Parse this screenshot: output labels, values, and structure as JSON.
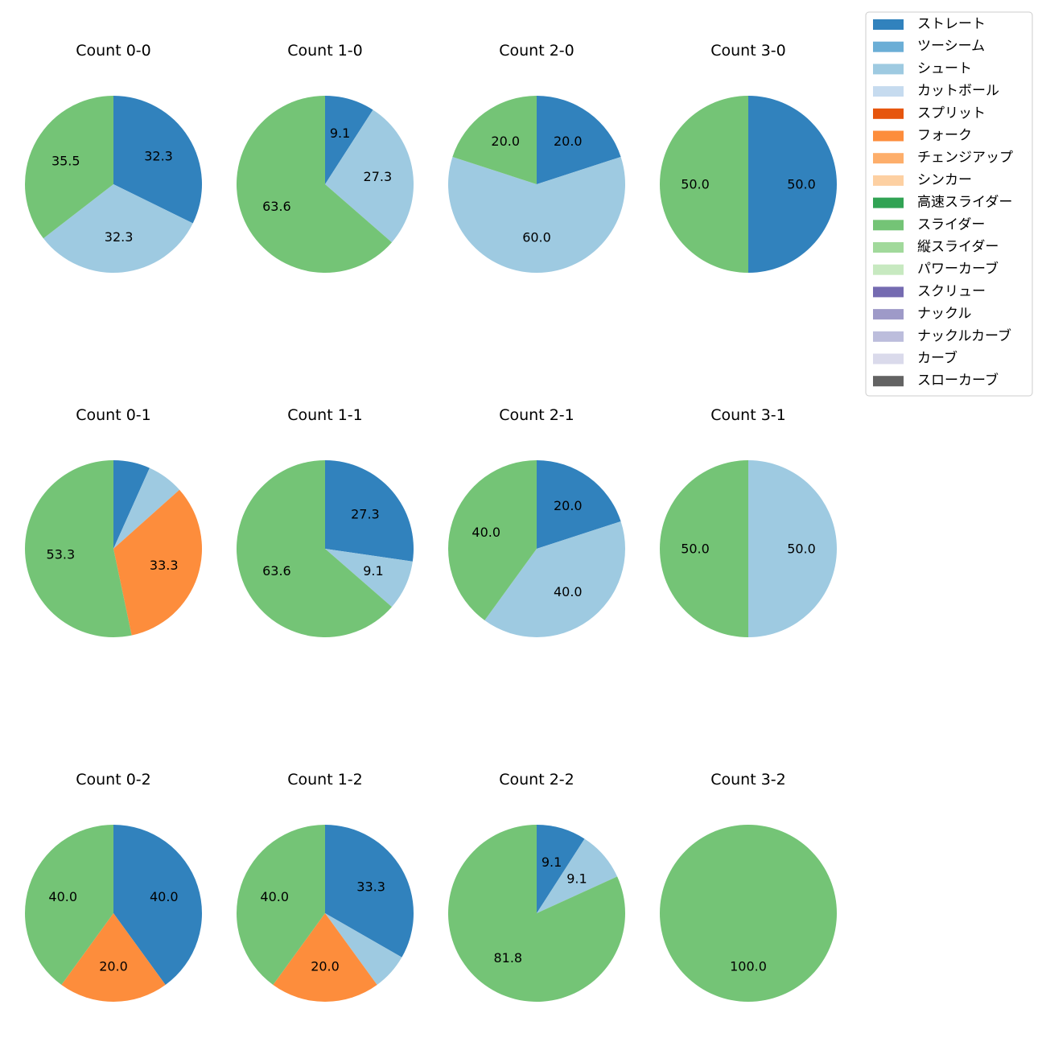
{
  "legend": {
    "entries": [
      {
        "name": "ストレート",
        "color": "#3182bd"
      },
      {
        "name": "ツーシーム",
        "color": "#6baed6"
      },
      {
        "name": "シュート",
        "color": "#9ecae1"
      },
      {
        "name": "カットボール",
        "color": "#c6dbef"
      },
      {
        "name": "スプリット",
        "color": "#e6550d"
      },
      {
        "name": "フォーク",
        "color": "#fd8d3c"
      },
      {
        "name": "チェンジアップ",
        "color": "#fdae6b"
      },
      {
        "name": "シンカー",
        "color": "#fdd0a2"
      },
      {
        "name": "高速スライダー",
        "color": "#31a354"
      },
      {
        "name": "スライダー",
        "color": "#74c476"
      },
      {
        "name": "縦スライダー",
        "color": "#a1d99b"
      },
      {
        "name": "パワーカーブ",
        "color": "#c7e9c0"
      },
      {
        "name": "スクリュー",
        "color": "#756bb1"
      },
      {
        "name": "ナックル",
        "color": "#9e9ac8"
      },
      {
        "name": "ナックルカーブ",
        "color": "#bcbddc"
      },
      {
        "name": "カーブ",
        "color": "#dadaeb"
      },
      {
        "name": "スローカーブ",
        "color": "#636363"
      }
    ]
  },
  "chart_data": [
    {
      "type": "pie",
      "title": "Count 0-0",
      "slices": [
        {
          "pitch": "ストレート",
          "value": 32.3,
          "label": "32.3"
        },
        {
          "pitch": "シュート",
          "value": 32.3,
          "label": "32.3"
        },
        {
          "pitch": "スライダー",
          "value": 35.5,
          "label": "35.5"
        }
      ]
    },
    {
      "type": "pie",
      "title": "Count 1-0",
      "slices": [
        {
          "pitch": "ストレート",
          "value": 9.1,
          "label": "9.1"
        },
        {
          "pitch": "シュート",
          "value": 27.3,
          "label": "27.3"
        },
        {
          "pitch": "スライダー",
          "value": 63.6,
          "label": "63.6"
        }
      ]
    },
    {
      "type": "pie",
      "title": "Count 2-0",
      "slices": [
        {
          "pitch": "ストレート",
          "value": 20.0,
          "label": "20.0"
        },
        {
          "pitch": "シュート",
          "value": 60.0,
          "label": "60.0"
        },
        {
          "pitch": "スライダー",
          "value": 20.0,
          "label": "20.0"
        }
      ]
    },
    {
      "type": "pie",
      "title": "Count 3-0",
      "slices": [
        {
          "pitch": "ストレート",
          "value": 50.0,
          "label": "50.0"
        },
        {
          "pitch": "スライダー",
          "value": 50.0,
          "label": "50.0"
        }
      ]
    },
    {
      "type": "pie",
      "title": "Count 0-1",
      "slices": [
        {
          "pitch": "ストレート",
          "value": 6.7,
          "label": ""
        },
        {
          "pitch": "シュート",
          "value": 6.7,
          "label": ""
        },
        {
          "pitch": "フォーク",
          "value": 33.3,
          "label": "33.3"
        },
        {
          "pitch": "スライダー",
          "value": 53.3,
          "label": "53.3"
        }
      ]
    },
    {
      "type": "pie",
      "title": "Count 1-1",
      "slices": [
        {
          "pitch": "ストレート",
          "value": 27.3,
          "label": "27.3"
        },
        {
          "pitch": "シュート",
          "value": 9.1,
          "label": "9.1"
        },
        {
          "pitch": "スライダー",
          "value": 63.6,
          "label": "63.6"
        }
      ]
    },
    {
      "type": "pie",
      "title": "Count 2-1",
      "slices": [
        {
          "pitch": "ストレート",
          "value": 20.0,
          "label": "20.0"
        },
        {
          "pitch": "シュート",
          "value": 40.0,
          "label": "40.0"
        },
        {
          "pitch": "スライダー",
          "value": 40.0,
          "label": "40.0"
        }
      ]
    },
    {
      "type": "pie",
      "title": "Count 3-1",
      "slices": [
        {
          "pitch": "シュート",
          "value": 50.0,
          "label": "50.0"
        },
        {
          "pitch": "スライダー",
          "value": 50.0,
          "label": "50.0"
        }
      ]
    },
    {
      "type": "pie",
      "title": "Count 0-2",
      "slices": [
        {
          "pitch": "ストレート",
          "value": 40.0,
          "label": "40.0"
        },
        {
          "pitch": "フォーク",
          "value": 20.0,
          "label": "20.0"
        },
        {
          "pitch": "スライダー",
          "value": 40.0,
          "label": "40.0"
        }
      ]
    },
    {
      "type": "pie",
      "title": "Count 1-2",
      "slices": [
        {
          "pitch": "ストレート",
          "value": 33.3,
          "label": "33.3"
        },
        {
          "pitch": "シュート",
          "value": 6.7,
          "label": ""
        },
        {
          "pitch": "フォーク",
          "value": 20.0,
          "label": "20.0"
        },
        {
          "pitch": "スライダー",
          "value": 40.0,
          "label": "40.0"
        }
      ]
    },
    {
      "type": "pie",
      "title": "Count 2-2",
      "slices": [
        {
          "pitch": "ストレート",
          "value": 9.1,
          "label": "9.1"
        },
        {
          "pitch": "シュート",
          "value": 9.1,
          "label": "9.1"
        },
        {
          "pitch": "スライダー",
          "value": 81.8,
          "label": "81.8"
        }
      ]
    },
    {
      "type": "pie",
      "title": "Count 3-2",
      "slices": [
        {
          "pitch": "スライダー",
          "value": 100.0,
          "label": "100.0"
        }
      ]
    }
  ]
}
